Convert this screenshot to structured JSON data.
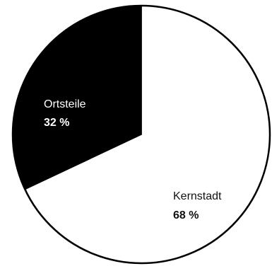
{
  "chart_data": {
    "type": "pie",
    "slices": [
      {
        "label": "Kernstadt",
        "value": 68,
        "value_label": "68 %",
        "color": "#ffffff",
        "text_color": "#111111"
      },
      {
        "label": "Ortsteile",
        "value": 32,
        "value_label": "32 %",
        "color": "#000000",
        "text_color": "#ffffff"
      }
    ],
    "start": "12 o'clock",
    "direction": "clockwise",
    "outline_color": "#000000"
  }
}
